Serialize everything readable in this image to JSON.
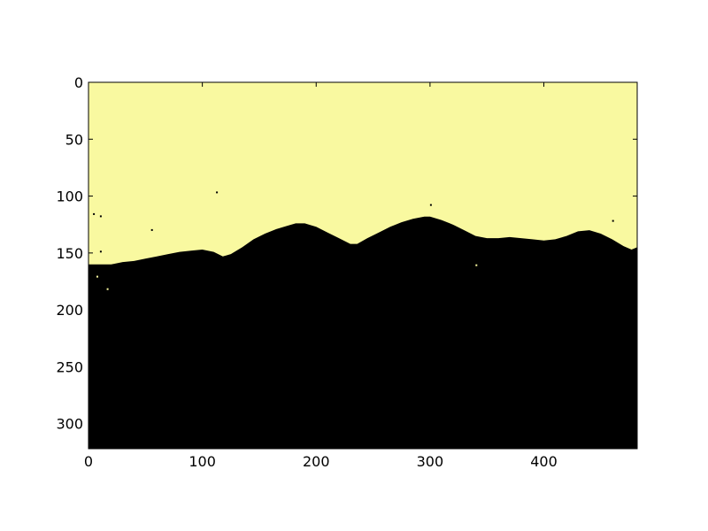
{
  "chart_data": {
    "type": "heatmap",
    "title": "",
    "xlabel": "",
    "ylabel": "",
    "xlim": [
      0,
      482
    ],
    "ylim": [
      322,
      0
    ],
    "xticks": [
      0,
      100,
      200,
      300,
      400
    ],
    "yticks": [
      0,
      50,
      100,
      150,
      200,
      250,
      300
    ],
    "grid": false,
    "colors": {
      "upper_region": "#f9f9a0",
      "lower_region": "#000000"
    },
    "boundary": {
      "x": [
        0,
        10,
        20,
        30,
        40,
        50,
        60,
        70,
        80,
        90,
        100,
        110,
        118,
        125,
        135,
        145,
        155,
        165,
        175,
        182,
        190,
        200,
        210,
        220,
        230,
        236,
        245,
        255,
        265,
        275,
        285,
        295,
        300,
        310,
        320,
        330,
        340,
        350,
        360,
        370,
        380,
        390,
        400,
        410,
        420,
        430,
        440,
        450,
        460,
        470,
        477,
        482
      ],
      "y": [
        160,
        160,
        160,
        158,
        157,
        155,
        153,
        151,
        149,
        148,
        147,
        149,
        153,
        151,
        145,
        138,
        133,
        129,
        126,
        124,
        124,
        127,
        132,
        137,
        142,
        142,
        137,
        132,
        127,
        123,
        120,
        118,
        118,
        121,
        125,
        130,
        135,
        137,
        137,
        136,
        137,
        138,
        139,
        138,
        135,
        131,
        130,
        133,
        138,
        144,
        147,
        145
      ]
    }
  }
}
